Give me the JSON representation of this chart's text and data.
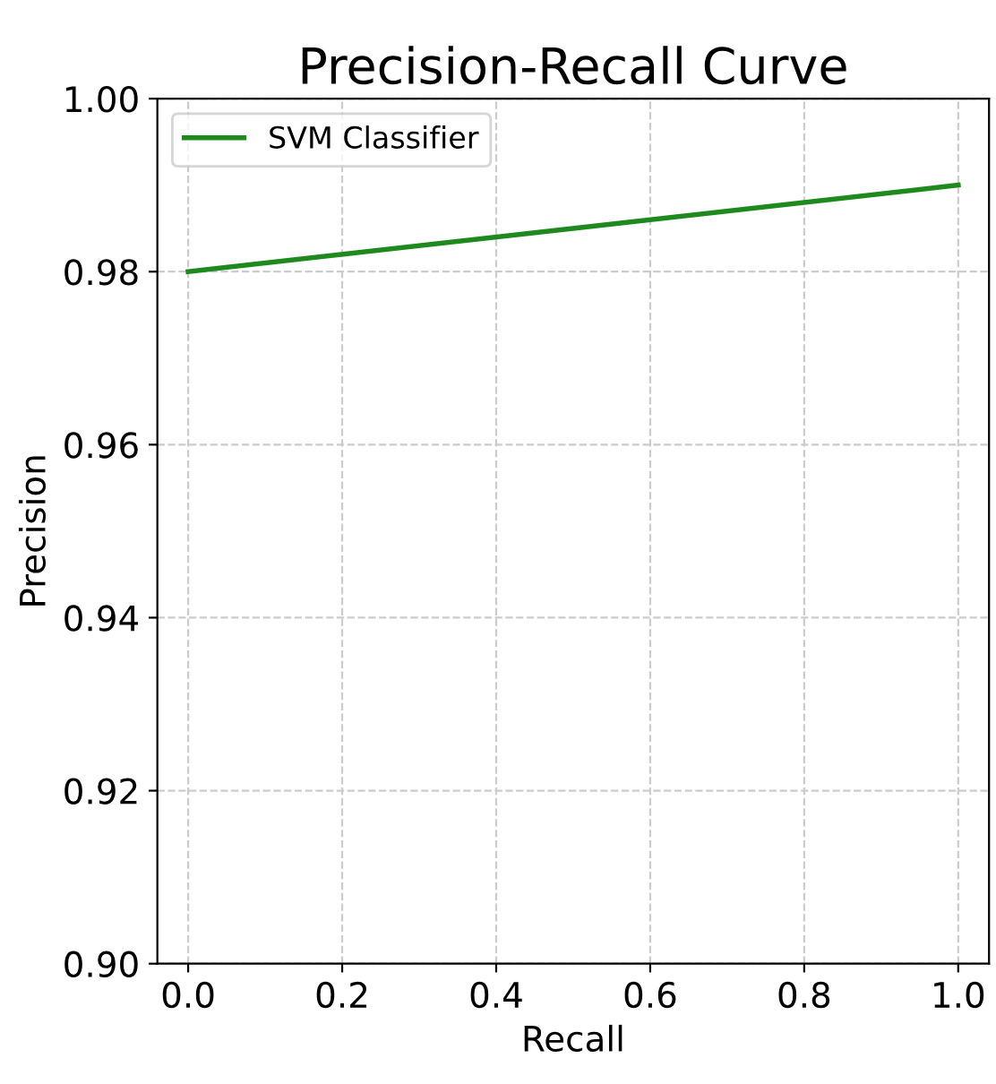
{
  "chart_data": {
    "type": "line",
    "title": "Precision-Recall Curve",
    "xlabel": "Recall",
    "ylabel": "Precision",
    "x": [
      0.0,
      1.0
    ],
    "series": [
      {
        "name": "SVM Classifier",
        "color": "#1e8a1e",
        "values": [
          0.98,
          0.99
        ]
      }
    ],
    "xlim": [
      -0.04,
      1.04
    ],
    "ylim": [
      0.9,
      1.0
    ],
    "xticks": [
      {
        "value": 0,
        "label": "0.0"
      },
      0.2,
      0.4,
      0.6,
      0.8,
      {
        "value": 1,
        "label": "1.0"
      }
    ],
    "yticks": [
      {
        "value": 0.9,
        "label": "0.90"
      },
      0.92,
      0.94,
      0.96,
      0.98,
      {
        "value": 1.0,
        "label": "1.00"
      }
    ],
    "grid": true,
    "legend": "top left",
    "line_style": "solid",
    "marker": "none"
  }
}
